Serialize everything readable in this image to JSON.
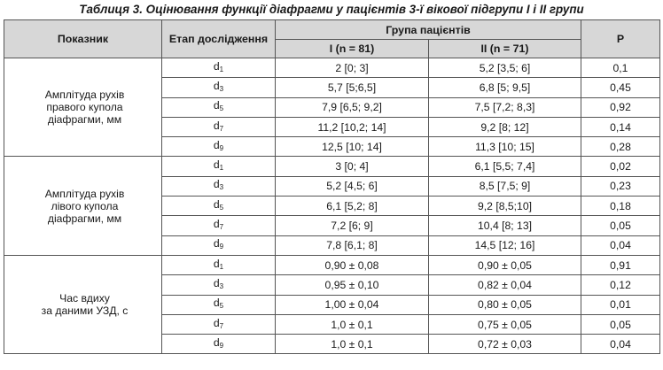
{
  "caption": "Таблиця 3.  Оцінювання функції діафрагми у пацієнтів 3-ї вікової підгрупи І і ІІ групи",
  "headers": {
    "indicator": "Показник",
    "stage": "Етап дослідження",
    "group_patients": "Група пацієнтів",
    "group1": "I (n = 81)",
    "group2": "II (n = 71)",
    "p": "P"
  },
  "sections": [
    {
      "label": [
        "Амплітуда рухів",
        "правого купола",
        "діафрагми, мм"
      ],
      "rows": [
        {
          "stage": "d",
          "sub": "1",
          "g1": "2 [0; 3]",
          "g2": "5,2 [3,5; 6]",
          "p": "0,1"
        },
        {
          "stage": "d",
          "sub": "3",
          "g1": "5,7 [5;6,5]",
          "g2": "6,8 [5; 9,5]",
          "p": "0,45"
        },
        {
          "stage": "d",
          "sub": "5",
          "g1": "7,9 [6,5; 9,2]",
          "g2": "7,5 [7,2; 8,3]",
          "p": "0,92"
        },
        {
          "stage": "d",
          "sub": "7",
          "g1": "11,2 [10,2; 14]",
          "g2": "9,2 [8; 12]",
          "p": "0,14"
        },
        {
          "stage": "d",
          "sub": "9",
          "g1": "12,5 [10; 14]",
          "g2": "11,3 [10; 15]",
          "p": "0,28"
        }
      ]
    },
    {
      "label": [
        "Амплітуда рухів",
        "лівого купола",
        "діафрагми, мм"
      ],
      "rows": [
        {
          "stage": "d",
          "sub": "1",
          "g1": "3 [0; 4]",
          "g2": "6,1 [5,5; 7,4]",
          "p": "0,02"
        },
        {
          "stage": "d",
          "sub": "3",
          "g1": "5,2 [4,5; 6]",
          "g2": "8,5 [7,5; 9]",
          "p": "0,23"
        },
        {
          "stage": "d",
          "sub": "5",
          "g1": "6,1 [5,2; 8]",
          "g2": "9,2 [8,5;10]",
          "p": "0,18"
        },
        {
          "stage": "d",
          "sub": "7",
          "g1": "7,2 [6; 9]",
          "g2": "10,4 [8; 13]",
          "p": "0,05"
        },
        {
          "stage": "d",
          "sub": "9",
          "g1": "7,8 [6,1; 8]",
          "g2": "14,5 [12; 16]",
          "p": "0,04"
        }
      ]
    },
    {
      "label": [
        "Час вдиху",
        "за даними УЗД, с"
      ],
      "rows": [
        {
          "stage": "d",
          "sub": "1",
          "g1": "0,90 ± 0,08",
          "g2": "0,90 ± 0,05",
          "p": "0,91"
        },
        {
          "stage": "d",
          "sub": "3",
          "g1": "0,95 ± 0,10",
          "g2": "0,82 ± 0,04",
          "p": "0,12"
        },
        {
          "stage": "d",
          "sub": "5",
          "g1": "1,00 ± 0,04",
          "g2": "0,80 ± 0,05",
          "p": "0,01"
        },
        {
          "stage": "d",
          "sub": "7",
          "g1": "1,0 ± 0,1",
          "g2": "0,75 ± 0,05",
          "p": "0,05"
        },
        {
          "stage": "d",
          "sub": "9",
          "g1": "1,0 ± 0,1",
          "g2": "0,72 ± 0,03",
          "p": "0,04"
        }
      ]
    }
  ]
}
